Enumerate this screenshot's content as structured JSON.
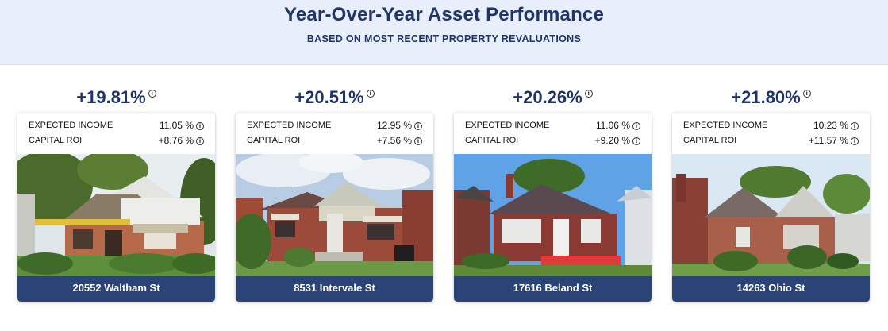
{
  "header": {
    "title": "Year-Over-Year Asset Performance",
    "subtitle": "BASED ON MOST RECENT PROPERTY REVALUATIONS"
  },
  "info_glyph": "i",
  "labels": {
    "expected_income": "EXPECTED INCOME",
    "capital_roi": "CAPITAL ROI"
  },
  "properties": [
    {
      "performance": "+19.81%",
      "expected_income": "11.05 %",
      "capital_roi": "+8.76 %",
      "address": "20552 Waltham St"
    },
    {
      "performance": "+20.51%",
      "expected_income": "12.95 %",
      "capital_roi": "+7.56 %",
      "address": "8531 Intervale St"
    },
    {
      "performance": "+20.26%",
      "expected_income": "11.06 %",
      "capital_roi": "+9.20 %",
      "address": "17616 Beland St"
    },
    {
      "performance": "+21.80%",
      "expected_income": "10.23 %",
      "capital_roi": "+11.57 %",
      "address": "14263 Ohio St"
    }
  ],
  "colors": {
    "header_bg": "#e8effb",
    "title_text": "#1e3566",
    "address_bar": "#2b4478"
  }
}
